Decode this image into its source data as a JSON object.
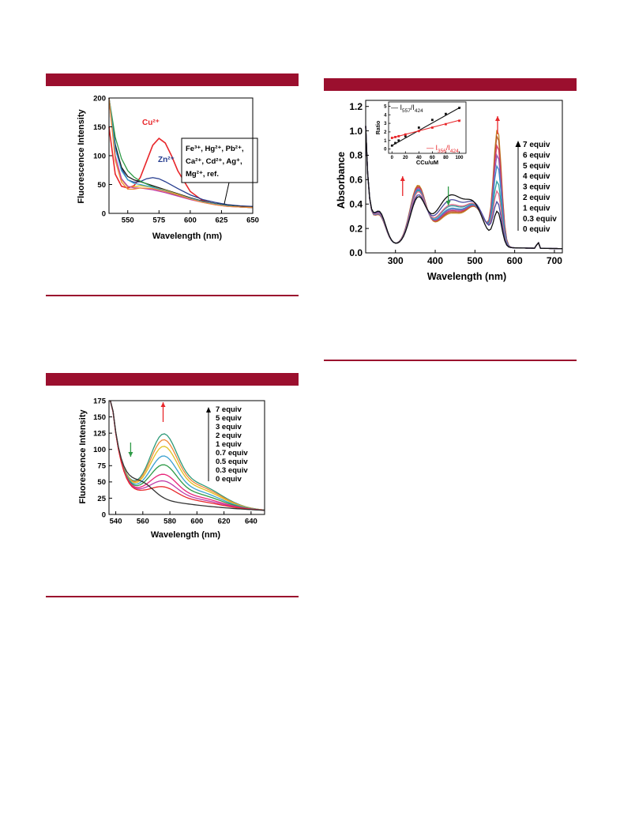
{
  "chart_data": [
    {
      "type": "line",
      "xlabel": "Wavelength (nm)",
      "ylabel": "Fluorescence Intensity",
      "xlim": [
        535,
        650
      ],
      "ylim": [
        0,
        200
      ],
      "xticks": [
        550,
        575,
        600,
        625,
        650
      ],
      "yticks": [
        0,
        50,
        100,
        150,
        200
      ],
      "annotations": [
        "Cu²⁺",
        "Zn²⁺"
      ],
      "legend_box": [
        "Fe³⁺, Hg²⁺, Pb²⁺,",
        "Ca²⁺, Cd²⁺, Ag⁺,",
        "Mg²⁺, ref."
      ],
      "series": [
        {
          "color": "#e8262a",
          "x": [
            535,
            540,
            545,
            550,
            555,
            560,
            565,
            570,
            575,
            580,
            585,
            590,
            600,
            610,
            620,
            630,
            640,
            650
          ],
          "y": [
            150,
            68,
            47,
            44,
            48,
            62,
            90,
            118,
            130,
            122,
            100,
            74,
            38,
            22,
            16,
            13,
            12,
            11
          ]
        },
        {
          "color": "#263d8f",
          "x": [
            535,
            540,
            545,
            550,
            555,
            560,
            565,
            570,
            575,
            580,
            590,
            600,
            610,
            620,
            630,
            640,
            650
          ],
          "y": [
            200,
            120,
            78,
            58,
            54,
            55,
            60,
            62,
            60,
            55,
            43,
            32,
            24,
            19,
            15,
            13,
            12
          ]
        },
        {
          "color": "#1a1a1a",
          "x": [
            535,
            540,
            545,
            550,
            555,
            560,
            570,
            580,
            590,
            600,
            610,
            620,
            630,
            640,
            650
          ],
          "y": [
            200,
            118,
            80,
            64,
            58,
            55,
            48,
            41,
            34,
            27,
            21,
            17,
            14,
            12,
            11
          ]
        },
        {
          "color": "#2e9a46",
          "x": [
            535,
            540,
            545,
            550,
            555,
            560,
            570,
            580,
            590,
            600,
            610,
            620,
            630,
            640,
            650
          ],
          "y": [
            200,
            132,
            95,
            74,
            63,
            56,
            46,
            38,
            31,
            25,
            20,
            16,
            13,
            11,
            10
          ]
        },
        {
          "color": "#e0c020",
          "x": [
            535,
            540,
            545,
            550,
            555,
            560,
            570,
            580,
            590,
            600,
            610,
            620,
            630,
            640,
            650
          ],
          "y": [
            200,
            98,
            58,
            46,
            46,
            48,
            45,
            40,
            33,
            26,
            20,
            16,
            13,
            11,
            10
          ]
        },
        {
          "color": "#c03aa8",
          "x": [
            535,
            540,
            545,
            550,
            555,
            560,
            570,
            580,
            590,
            600,
            610,
            620,
            630,
            640,
            650
          ],
          "y": [
            200,
            100,
            60,
            47,
            44,
            44,
            41,
            36,
            30,
            24,
            19,
            15,
            12,
            11,
            10
          ]
        },
        {
          "color": "#3aa0d0",
          "x": [
            535,
            540,
            545,
            550,
            555,
            560,
            570,
            580,
            590,
            600,
            610,
            620,
            630,
            640,
            650
          ],
          "y": [
            200,
            112,
            74,
            58,
            52,
            50,
            45,
            39,
            32,
            26,
            20,
            16,
            13,
            11,
            10
          ]
        },
        {
          "color": "#f08a3a",
          "x": [
            535,
            540,
            545,
            550,
            555,
            560,
            570,
            580,
            590,
            600,
            610,
            620,
            630,
            640,
            650
          ],
          "y": [
            200,
            92,
            54,
            42,
            42,
            44,
            43,
            38,
            32,
            25,
            19,
            15,
            12,
            11,
            10
          ]
        }
      ]
    },
    {
      "type": "line",
      "xlabel": "Wavelength (nm)",
      "ylabel": "Absorbance",
      "xlim": [
        225,
        720
      ],
      "ylim": [
        0.0,
        1.25
      ],
      "xticks": [
        300,
        400,
        500,
        600,
        700
      ],
      "yticks": [
        0.0,
        0.2,
        0.4,
        0.6,
        0.8,
        1.0,
        1.2
      ],
      "equiv_labels": [
        "7 equiv",
        "6 equiv",
        "5 equiv",
        "4 equiv",
        "3 equiv",
        "2 equiv",
        "1 equiv",
        "0.3 equiv",
        "0 equiv"
      ],
      "peak_557": [
        0.93,
        0.88,
        0.8,
        0.72,
        0.63,
        0.5,
        0.42,
        0.33,
        0.27
      ],
      "peak_356": [
        0.47,
        0.46,
        0.45,
        0.44,
        0.43,
        0.42,
        0.41,
        0.38,
        0.36
      ],
      "band_424": [
        0.27,
        0.28,
        0.29,
        0.3,
        0.31,
        0.33,
        0.34,
        0.38,
        0.42
      ],
      "colors": [
        "#c98a2a",
        "#b85a2a",
        "#d63a6a",
        "#8a5ab0",
        "#3a8ac8",
        "#2aa0a0",
        "#e06a8a",
        "#4a4aa0",
        "#111111"
      ],
      "inset": {
        "xlabel": "CCu/uM",
        "ylabel": "Ratio",
        "xlim": [
          -5,
          110
        ],
        "ylim": [
          -0.5,
          5.5
        ],
        "xticks": [
          0,
          20,
          40,
          60,
          80,
          100
        ],
        "yticks": [
          0,
          1,
          2,
          3,
          4,
          5
        ],
        "series": [
          {
            "name": "I557/I424",
            "color": "#111111",
            "x": [
              0,
              5,
              10,
              20,
              40,
              60,
              80,
              100
            ],
            "y": [
              0.4,
              0.7,
              1.0,
              1.5,
              2.5,
              3.4,
              4.1,
              4.8
            ]
          },
          {
            "name": "I356/I424",
            "color": "#e8262a",
            "x": [
              0,
              5,
              10,
              20,
              40,
              60,
              80,
              100
            ],
            "y": [
              1.3,
              1.4,
              1.5,
              1.7,
              2.1,
              2.5,
              2.9,
              3.3
            ]
          }
        ]
      }
    },
    {
      "type": "line",
      "xlabel": "Wavelength (nm)",
      "ylabel": "Fluorescence Intensity",
      "xlim": [
        535,
        650
      ],
      "ylim": [
        0,
        175
      ],
      "xticks": [
        540,
        560,
        580,
        600,
        620,
        640
      ],
      "yticks": [
        0,
        25,
        50,
        75,
        100,
        125,
        150,
        175
      ],
      "equiv_labels": [
        "7 equiv",
        "5 equiv",
        "3 equiv",
        "2 equiv",
        "1 equiv",
        "0.7 equiv",
        "0.5 equiv",
        "0.3 equiv",
        "0 equiv"
      ],
      "peak_575": [
        130,
        122,
        113,
        100,
        88,
        75,
        66,
        58,
        40
      ],
      "colors": [
        "#2e9a78",
        "#f08a3a",
        "#e0c020",
        "#3aa0d0",
        "#2e9a46",
        "#e8267a",
        "#c03aa8",
        "#e8262a",
        "#333333"
      ]
    }
  ]
}
